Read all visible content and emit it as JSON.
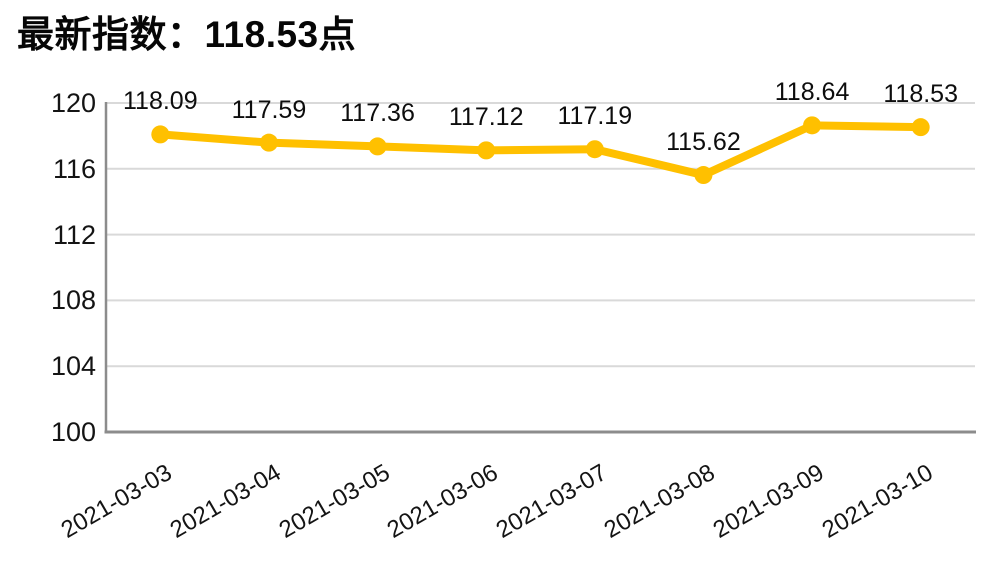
{
  "header": {
    "title": "最新指数：118.53点"
  },
  "chart_data": {
    "type": "line",
    "title": "最新指数：118.53点",
    "x": [
      "2021-03-03",
      "2021-03-04",
      "2021-03-05",
      "2021-03-06",
      "2021-03-07",
      "2021-03-08",
      "2021-03-09",
      "2021-03-10"
    ],
    "series": [
      {
        "name": "",
        "values": [
          118.09,
          117.59,
          117.36,
          117.12,
          117.19,
          115.62,
          118.64,
          118.53
        ]
      }
    ],
    "data_labels": [
      "118.09",
      "117.59",
      "117.36",
      "117.12",
      "117.19",
      "115.62",
      "118.64",
      "118.53"
    ],
    "xlabel": "",
    "ylabel": "",
    "ylim": [
      100,
      120
    ],
    "yticks": [
      100,
      104,
      108,
      112,
      116,
      120
    ],
    "grid": "horizontal",
    "legend": "none",
    "x_label_rotation_deg": -30,
    "colors": {
      "line": "#FFC000",
      "marker": "#FFC000",
      "gridline": "#D9D9D9",
      "axis": "#8C8C8C",
      "text": "#0D0D0D",
      "background": "#FFFFFF"
    }
  }
}
